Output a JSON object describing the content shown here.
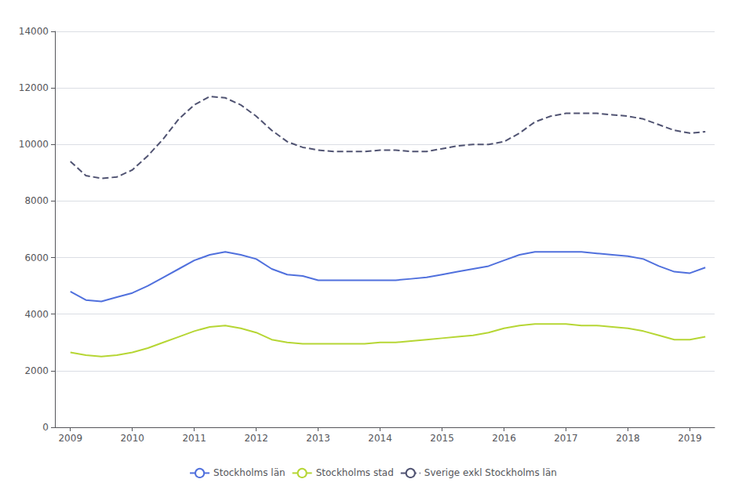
{
  "chart_data": {
    "type": "line",
    "x": [
      2009.0,
      2009.25,
      2009.5,
      2009.75,
      2010.0,
      2010.25,
      2010.5,
      2010.75,
      2011.0,
      2011.25,
      2011.5,
      2011.75,
      2012.0,
      2012.25,
      2012.5,
      2012.75,
      2013.0,
      2013.25,
      2013.5,
      2013.75,
      2014.0,
      2014.25,
      2014.5,
      2014.75,
      2015.0,
      2015.25,
      2015.5,
      2015.75,
      2016.0,
      2016.25,
      2016.5,
      2016.75,
      2017.0,
      2017.25,
      2017.5,
      2017.75,
      2018.0,
      2018.25,
      2018.5,
      2018.75,
      2019.0,
      2019.25
    ],
    "series": [
      {
        "name": "Stockholms län",
        "line_style": "solid",
        "values": [
          4800,
          4500,
          4450,
          4600,
          4750,
          5000,
          5300,
          5600,
          5900,
          6100,
          6200,
          6100,
          5950,
          5600,
          5400,
          5350,
          5200,
          5200,
          5200,
          5200,
          5200,
          5200,
          5250,
          5300,
          5400,
          5500,
          5600,
          5700,
          5900,
          6100,
          6200,
          6200,
          6200,
          6200,
          6150,
          6100,
          6050,
          5950,
          5700,
          5500,
          5450,
          5650
        ]
      },
      {
        "name": "Stockholms stad",
        "line_style": "solid",
        "values": [
          2650,
          2550,
          2500,
          2550,
          2650,
          2800,
          3000,
          3200,
          3400,
          3550,
          3600,
          3500,
          3350,
          3100,
          3000,
          2950,
          2950,
          2950,
          2950,
          2950,
          3000,
          3000,
          3050,
          3100,
          3150,
          3200,
          3250,
          3350,
          3500,
          3600,
          3650,
          3650,
          3650,
          3600,
          3600,
          3550,
          3500,
          3400,
          3250,
          3100,
          3100,
          3200
        ]
      },
      {
        "name": "Sverige exkl Stockholms län",
        "line_style": "dashed",
        "values": [
          9400,
          8900,
          8800,
          8850,
          9100,
          9600,
          10200,
          10900,
          11400,
          11700,
          11650,
          11400,
          11000,
          10500,
          10100,
          9900,
          9800,
          9750,
          9750,
          9750,
          9800,
          9800,
          9750,
          9750,
          9850,
          9950,
          10000,
          10000,
          10100,
          10400,
          10800,
          11000,
          11100,
          11100,
          11100,
          11050,
          11000,
          10900,
          10700,
          10500,
          10400,
          10450
        ]
      }
    ],
    "xlim": [
      2008.75,
      2019.4
    ],
    "xticks": [
      2009,
      2010,
      2011,
      2012,
      2013,
      2014,
      2015,
      2016,
      2017,
      2018,
      2019
    ],
    "ylim": [
      0,
      14000
    ],
    "yticks": [
      0,
      2000,
      4000,
      6000,
      8000,
      10000,
      12000,
      14000
    ],
    "grid": "y",
    "legend": "bottom"
  }
}
